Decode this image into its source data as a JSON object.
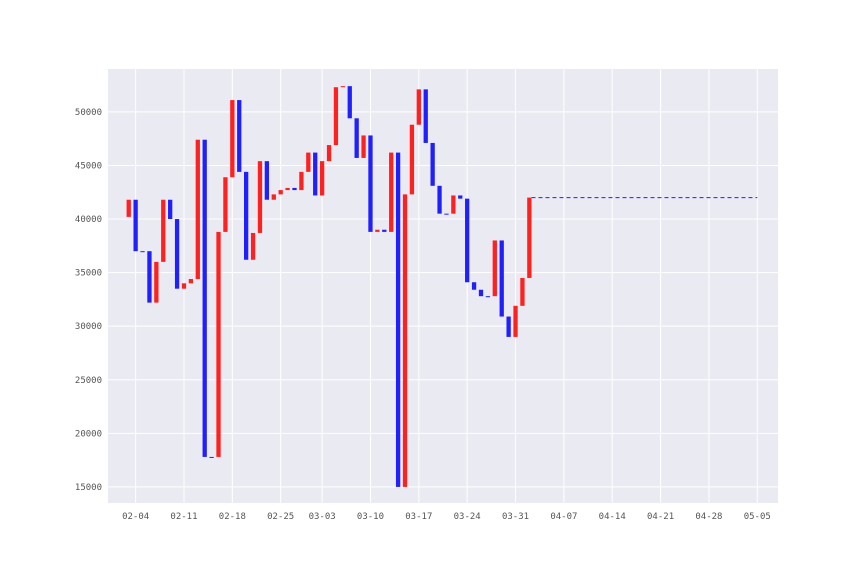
{
  "chart_data": {
    "type": "bar",
    "subtype": "waterfall",
    "x_axis": {
      "type": "date",
      "range": [
        "2019-01-31",
        "2019-05-08"
      ],
      "ticks": [
        {
          "date": "2019-02-04",
          "label": "02-04"
        },
        {
          "date": "2019-02-11",
          "label": "02-11"
        },
        {
          "date": "2019-02-18",
          "label": "02-18"
        },
        {
          "date": "2019-02-25",
          "label": "02-25"
        },
        {
          "date": "2019-03-03",
          "label": "03-03"
        },
        {
          "date": "2019-03-10",
          "label": "03-10"
        },
        {
          "date": "2019-03-17",
          "label": "03-17"
        },
        {
          "date": "2019-03-24",
          "label": "03-24"
        },
        {
          "date": "2019-03-31",
          "label": "03-31"
        },
        {
          "date": "2019-04-07",
          "label": "04-07"
        },
        {
          "date": "2019-04-14",
          "label": "04-14"
        },
        {
          "date": "2019-04-21",
          "label": "04-21"
        },
        {
          "date": "2019-04-28",
          "label": "04-28"
        },
        {
          "date": "2019-05-05",
          "label": "05-05"
        }
      ]
    },
    "y_axis": {
      "range": [
        13500,
        54000
      ],
      "ticks": [
        15000,
        20000,
        25000,
        30000,
        35000,
        40000,
        45000,
        50000
      ],
      "tick_labels": [
        "15000",
        "20000",
        "25000",
        "30000",
        "35000",
        "40000",
        "45000",
        "50000"
      ]
    },
    "grid": true,
    "colors": {
      "background": "#eaeaf2",
      "grid": "#ffffff",
      "increase": "#ff2020",
      "decrease": "#2020ff",
      "projection": "#2020ff"
    },
    "bars": [
      {
        "date": "2019-02-03",
        "start": 40200,
        "end": 41800,
        "direction": "increase"
      },
      {
        "date": "2019-02-04",
        "start": 41800,
        "end": 37000,
        "direction": "decrease"
      },
      {
        "date": "2019-02-05",
        "start": 37000,
        "end": 37000,
        "direction": "decrease"
      },
      {
        "date": "2019-02-06",
        "start": 37000,
        "end": 32200,
        "direction": "decrease"
      },
      {
        "date": "2019-02-07",
        "start": 32200,
        "end": 36000,
        "direction": "increase"
      },
      {
        "date": "2019-02-08",
        "start": 36000,
        "end": 41800,
        "direction": "increase"
      },
      {
        "date": "2019-02-09",
        "start": 41800,
        "end": 40000,
        "direction": "decrease"
      },
      {
        "date": "2019-02-10",
        "start": 40000,
        "end": 33500,
        "direction": "decrease"
      },
      {
        "date": "2019-02-11",
        "start": 33500,
        "end": 34000,
        "direction": "increase"
      },
      {
        "date": "2019-02-12",
        "start": 34000,
        "end": 34400,
        "direction": "increase"
      },
      {
        "date": "2019-02-13",
        "start": 34400,
        "end": 47400,
        "direction": "increase"
      },
      {
        "date": "2019-02-14",
        "start": 47400,
        "end": 17800,
        "direction": "decrease"
      },
      {
        "date": "2019-02-15",
        "start": 17800,
        "end": 17800,
        "direction": "decrease"
      },
      {
        "date": "2019-02-16",
        "start": 17800,
        "end": 38800,
        "direction": "increase"
      },
      {
        "date": "2019-02-17",
        "start": 38800,
        "end": 43900,
        "direction": "increase"
      },
      {
        "date": "2019-02-18",
        "start": 43900,
        "end": 51100,
        "direction": "increase"
      },
      {
        "date": "2019-02-19",
        "start": 51100,
        "end": 44400,
        "direction": "decrease"
      },
      {
        "date": "2019-02-20",
        "start": 44400,
        "end": 36200,
        "direction": "decrease"
      },
      {
        "date": "2019-02-21",
        "start": 36200,
        "end": 38700,
        "direction": "increase"
      },
      {
        "date": "2019-02-22",
        "start": 38700,
        "end": 45400,
        "direction": "increase"
      },
      {
        "date": "2019-02-23",
        "start": 45400,
        "end": 41800,
        "direction": "decrease"
      },
      {
        "date": "2019-02-24",
        "start": 41800,
        "end": 42300,
        "direction": "increase"
      },
      {
        "date": "2019-02-25",
        "start": 42300,
        "end": 42700,
        "direction": "increase"
      },
      {
        "date": "2019-02-26",
        "start": 42700,
        "end": 42900,
        "direction": "increase"
      },
      {
        "date": "2019-02-27",
        "start": 42900,
        "end": 42700,
        "direction": "decrease"
      },
      {
        "date": "2019-02-28",
        "start": 42700,
        "end": 44400,
        "direction": "increase"
      },
      {
        "date": "2019-03-01",
        "start": 44400,
        "end": 46200,
        "direction": "increase"
      },
      {
        "date": "2019-03-02",
        "start": 46200,
        "end": 42200,
        "direction": "decrease"
      },
      {
        "date": "2019-03-03",
        "start": 42200,
        "end": 45400,
        "direction": "increase"
      },
      {
        "date": "2019-03-04",
        "start": 45400,
        "end": 46900,
        "direction": "increase"
      },
      {
        "date": "2019-03-05",
        "start": 46900,
        "end": 52300,
        "direction": "increase"
      },
      {
        "date": "2019-03-06",
        "start": 52300,
        "end": 52400,
        "direction": "increase"
      },
      {
        "date": "2019-03-07",
        "start": 52400,
        "end": 49400,
        "direction": "decrease"
      },
      {
        "date": "2019-03-08",
        "start": 49400,
        "end": 45700,
        "direction": "decrease"
      },
      {
        "date": "2019-03-09",
        "start": 45700,
        "end": 47800,
        "direction": "increase"
      },
      {
        "date": "2019-03-10",
        "start": 47800,
        "end": 38800,
        "direction": "decrease"
      },
      {
        "date": "2019-03-11",
        "start": 38800,
        "end": 39000,
        "direction": "increase"
      },
      {
        "date": "2019-03-12",
        "start": 39000,
        "end": 38800,
        "direction": "decrease"
      },
      {
        "date": "2019-03-13",
        "start": 38800,
        "end": 46200,
        "direction": "increase"
      },
      {
        "date": "2019-03-14",
        "start": 46200,
        "end": 15000,
        "direction": "decrease"
      },
      {
        "date": "2019-03-15",
        "start": 15000,
        "end": 42300,
        "direction": "increase"
      },
      {
        "date": "2019-03-16",
        "start": 42300,
        "end": 48800,
        "direction": "increase"
      },
      {
        "date": "2019-03-17",
        "start": 48800,
        "end": 52100,
        "direction": "increase"
      },
      {
        "date": "2019-03-18",
        "start": 52100,
        "end": 47100,
        "direction": "decrease"
      },
      {
        "date": "2019-03-19",
        "start": 47100,
        "end": 43100,
        "direction": "decrease"
      },
      {
        "date": "2019-03-20",
        "start": 43100,
        "end": 40500,
        "direction": "decrease"
      },
      {
        "date": "2019-03-21",
        "start": 40500,
        "end": 40500,
        "direction": "decrease"
      },
      {
        "date": "2019-03-22",
        "start": 40500,
        "end": 42200,
        "direction": "increase"
      },
      {
        "date": "2019-03-23",
        "start": 42200,
        "end": 41900,
        "direction": "decrease"
      },
      {
        "date": "2019-03-24",
        "start": 41900,
        "end": 34100,
        "direction": "decrease"
      },
      {
        "date": "2019-03-25",
        "start": 34100,
        "end": 33400,
        "direction": "decrease"
      },
      {
        "date": "2019-03-26",
        "start": 33400,
        "end": 32800,
        "direction": "decrease"
      },
      {
        "date": "2019-03-27",
        "start": 32800,
        "end": 32800,
        "direction": "decrease"
      },
      {
        "date": "2019-03-28",
        "start": 32800,
        "end": 38000,
        "direction": "increase"
      },
      {
        "date": "2019-03-29",
        "start": 38000,
        "end": 30900,
        "direction": "decrease"
      },
      {
        "date": "2019-03-30",
        "start": 30900,
        "end": 29000,
        "direction": "decrease"
      },
      {
        "date": "2019-03-31",
        "start": 29000,
        "end": 31900,
        "direction": "increase"
      },
      {
        "date": "2019-04-01",
        "start": 31900,
        "end": 34500,
        "direction": "increase"
      },
      {
        "date": "2019-04-02",
        "start": 34500,
        "end": 42000,
        "direction": "increase"
      }
    ],
    "projection": {
      "style": "dashed",
      "from_date": "2019-04-02",
      "to_date": "2019-05-05",
      "value": 42000
    }
  }
}
